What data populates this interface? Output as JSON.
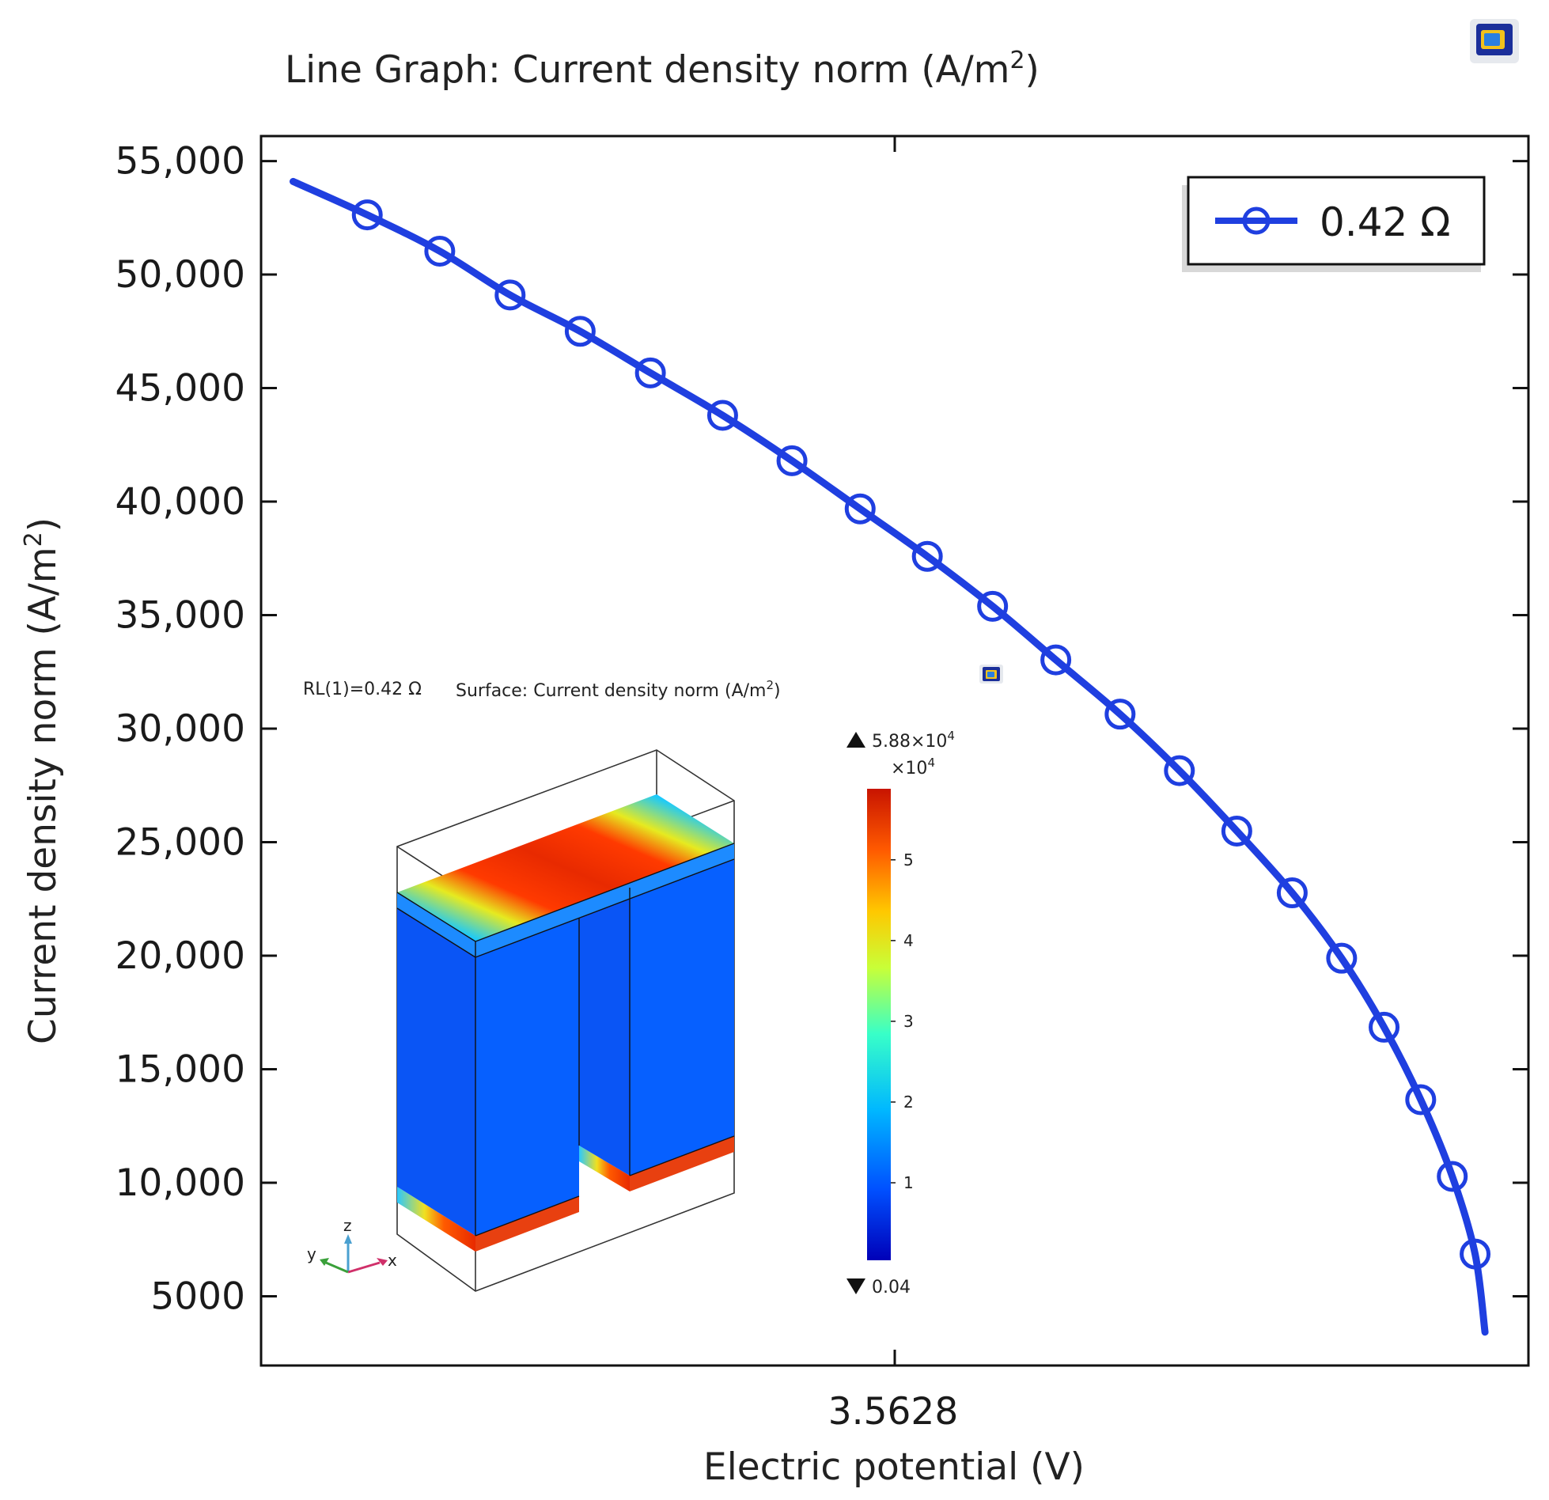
{
  "header": {
    "title": "Line Graph: Current density norm (A/m",
    "title_sup": "2",
    "title_end": ")",
    "logo_icon": "comsol-logo-icon"
  },
  "chart_data": {
    "type": "line",
    "title": "Line Graph: Current density norm (A/m²)",
    "xlabel": "Electric potential (V)",
    "ylabel": "Current density norm (A/m²)",
    "ylabel_main": "Current density norm (A/m",
    "ylabel_sup": "2",
    "ylabel_end": ")",
    "x_ticks": [
      "3.5628"
    ],
    "y_ticks": [
      {
        "value": 5000,
        "label": "5000"
      },
      {
        "value": 10000,
        "label": "10,000"
      },
      {
        "value": 15000,
        "label": "15,000"
      },
      {
        "value": 20000,
        "label": "20,000"
      },
      {
        "value": 25000,
        "label": "25,000"
      },
      {
        "value": 30000,
        "label": "30,000"
      },
      {
        "value": 35000,
        "label": "35,000"
      },
      {
        "value": 40000,
        "label": "40,000"
      },
      {
        "value": 45000,
        "label": "45,000"
      },
      {
        "value": 50000,
        "label": "50,000"
      },
      {
        "value": 55000,
        "label": "55,000"
      }
    ],
    "ylim": [
      1950,
      56100
    ],
    "xlim": [
      0,
      1
    ],
    "grid": false,
    "legend": {
      "position": "top-right"
    },
    "series": [
      {
        "name": "0.42 Ω",
        "color": "#1f3fe0",
        "marker": "circle",
        "line_points": [
          {
            "x": 0.0253,
            "y": 54100
          },
          {
            "x": 0.0838,
            "y": 52630
          },
          {
            "x": 0.141,
            "y": 51030
          },
          {
            "x": 0.1965,
            "y": 49100
          },
          {
            "x": 0.2518,
            "y": 47500
          },
          {
            "x": 0.3072,
            "y": 45670
          },
          {
            "x": 0.3642,
            "y": 43800
          },
          {
            "x": 0.4189,
            "y": 41800
          },
          {
            "x": 0.4727,
            "y": 39680
          },
          {
            "x": 0.5257,
            "y": 37590
          },
          {
            "x": 0.5772,
            "y": 35390
          },
          {
            "x": 0.6271,
            "y": 33030
          },
          {
            "x": 0.6778,
            "y": 30640
          },
          {
            "x": 0.7246,
            "y": 28150
          },
          {
            "x": 0.7699,
            "y": 25490
          },
          {
            "x": 0.8136,
            "y": 22770
          },
          {
            "x": 0.8526,
            "y": 19890
          },
          {
            "x": 0.8861,
            "y": 16850
          },
          {
            "x": 0.915,
            "y": 13660
          },
          {
            "x": 0.9399,
            "y": 10280
          },
          {
            "x": 0.9579,
            "y": 6860
          },
          {
            "x": 0.9657,
            "y": 3420
          }
        ],
        "markers": [
          {
            "x": 0.0838,
            "y": 52630
          },
          {
            "x": 0.141,
            "y": 51030
          },
          {
            "x": 0.1965,
            "y": 49100
          },
          {
            "x": 0.2518,
            "y": 47500
          },
          {
            "x": 0.3072,
            "y": 45670
          },
          {
            "x": 0.3642,
            "y": 43800
          },
          {
            "x": 0.4189,
            "y": 41800
          },
          {
            "x": 0.4727,
            "y": 39680
          },
          {
            "x": 0.5257,
            "y": 37590
          },
          {
            "x": 0.5772,
            "y": 35390
          },
          {
            "x": 0.6271,
            "y": 33030
          },
          {
            "x": 0.6778,
            "y": 30640
          },
          {
            "x": 0.7246,
            "y": 28150
          },
          {
            "x": 0.7699,
            "y": 25490
          },
          {
            "x": 0.8136,
            "y": 22770
          },
          {
            "x": 0.8526,
            "y": 19890
          },
          {
            "x": 0.8861,
            "y": 16850
          },
          {
            "x": 0.915,
            "y": 13660
          },
          {
            "x": 0.9399,
            "y": 10280
          },
          {
            "x": 0.9579,
            "y": 6860
          }
        ]
      }
    ]
  },
  "inset": {
    "param_label": "RL(1)=0.42 Ω",
    "title": "Surface: Current density norm (A/m",
    "title_sup": "2",
    "title_end": ")",
    "colorbar": {
      "max_label": "5.88×10",
      "max_sup": "4",
      "scale_label": "×10",
      "scale_sup": "4",
      "min_label": "0.04",
      "ticks": [
        "5",
        "4",
        "3",
        "2",
        "1"
      ],
      "tick_values": [
        5,
        4,
        3,
        2,
        1
      ],
      "min_value": 0.04,
      "max_value": 5.88,
      "colormap": [
        "#0000b0",
        "#0050ff",
        "#00b8ff",
        "#38ffc8",
        "#c8ff38",
        "#ffc800",
        "#ff5a00",
        "#c81400"
      ]
    },
    "axes_triad": {
      "x": "x",
      "y": "y",
      "z": "z"
    }
  }
}
